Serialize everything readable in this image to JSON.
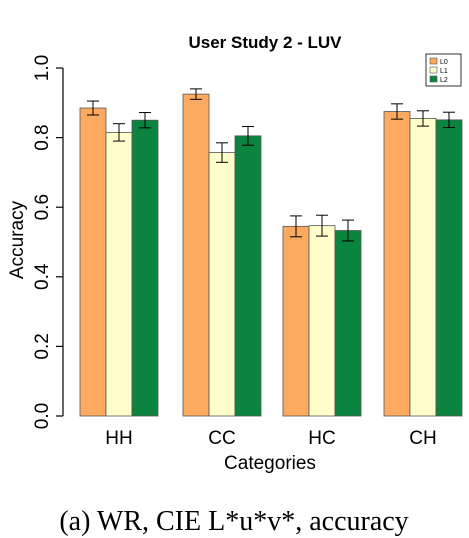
{
  "chart_data": {
    "type": "bar",
    "title": "User  Study 2 - LUV",
    "xlabel": "Categories",
    "ylabel": "Accuracy",
    "ylim": [
      0.0,
      1.0
    ],
    "yticks": [
      "0.0",
      "0.2",
      "0.4",
      "0.6",
      "0.8",
      "1.0"
    ],
    "categories": [
      "HH",
      "CC",
      "HC",
      "CH"
    ],
    "legend_placement": "top-right",
    "series": [
      {
        "name": "L0",
        "color": "#FCAA60",
        "values": [
          0.885,
          0.925,
          0.545,
          0.875
        ],
        "errors": [
          0.02,
          0.015,
          0.03,
          0.022
        ]
      },
      {
        "name": "L1",
        "color": "#FFFFCC",
        "values": [
          0.815,
          0.757,
          0.547,
          0.855
        ],
        "errors": [
          0.025,
          0.028,
          0.03,
          0.022
        ]
      },
      {
        "name": "L2",
        "color": "#0A843E",
        "values": [
          0.85,
          0.805,
          0.533,
          0.851
        ],
        "errors": [
          0.022,
          0.027,
          0.03,
          0.022
        ]
      }
    ]
  },
  "caption": "(a)  WR, CIE L*u*v*, accuracy"
}
